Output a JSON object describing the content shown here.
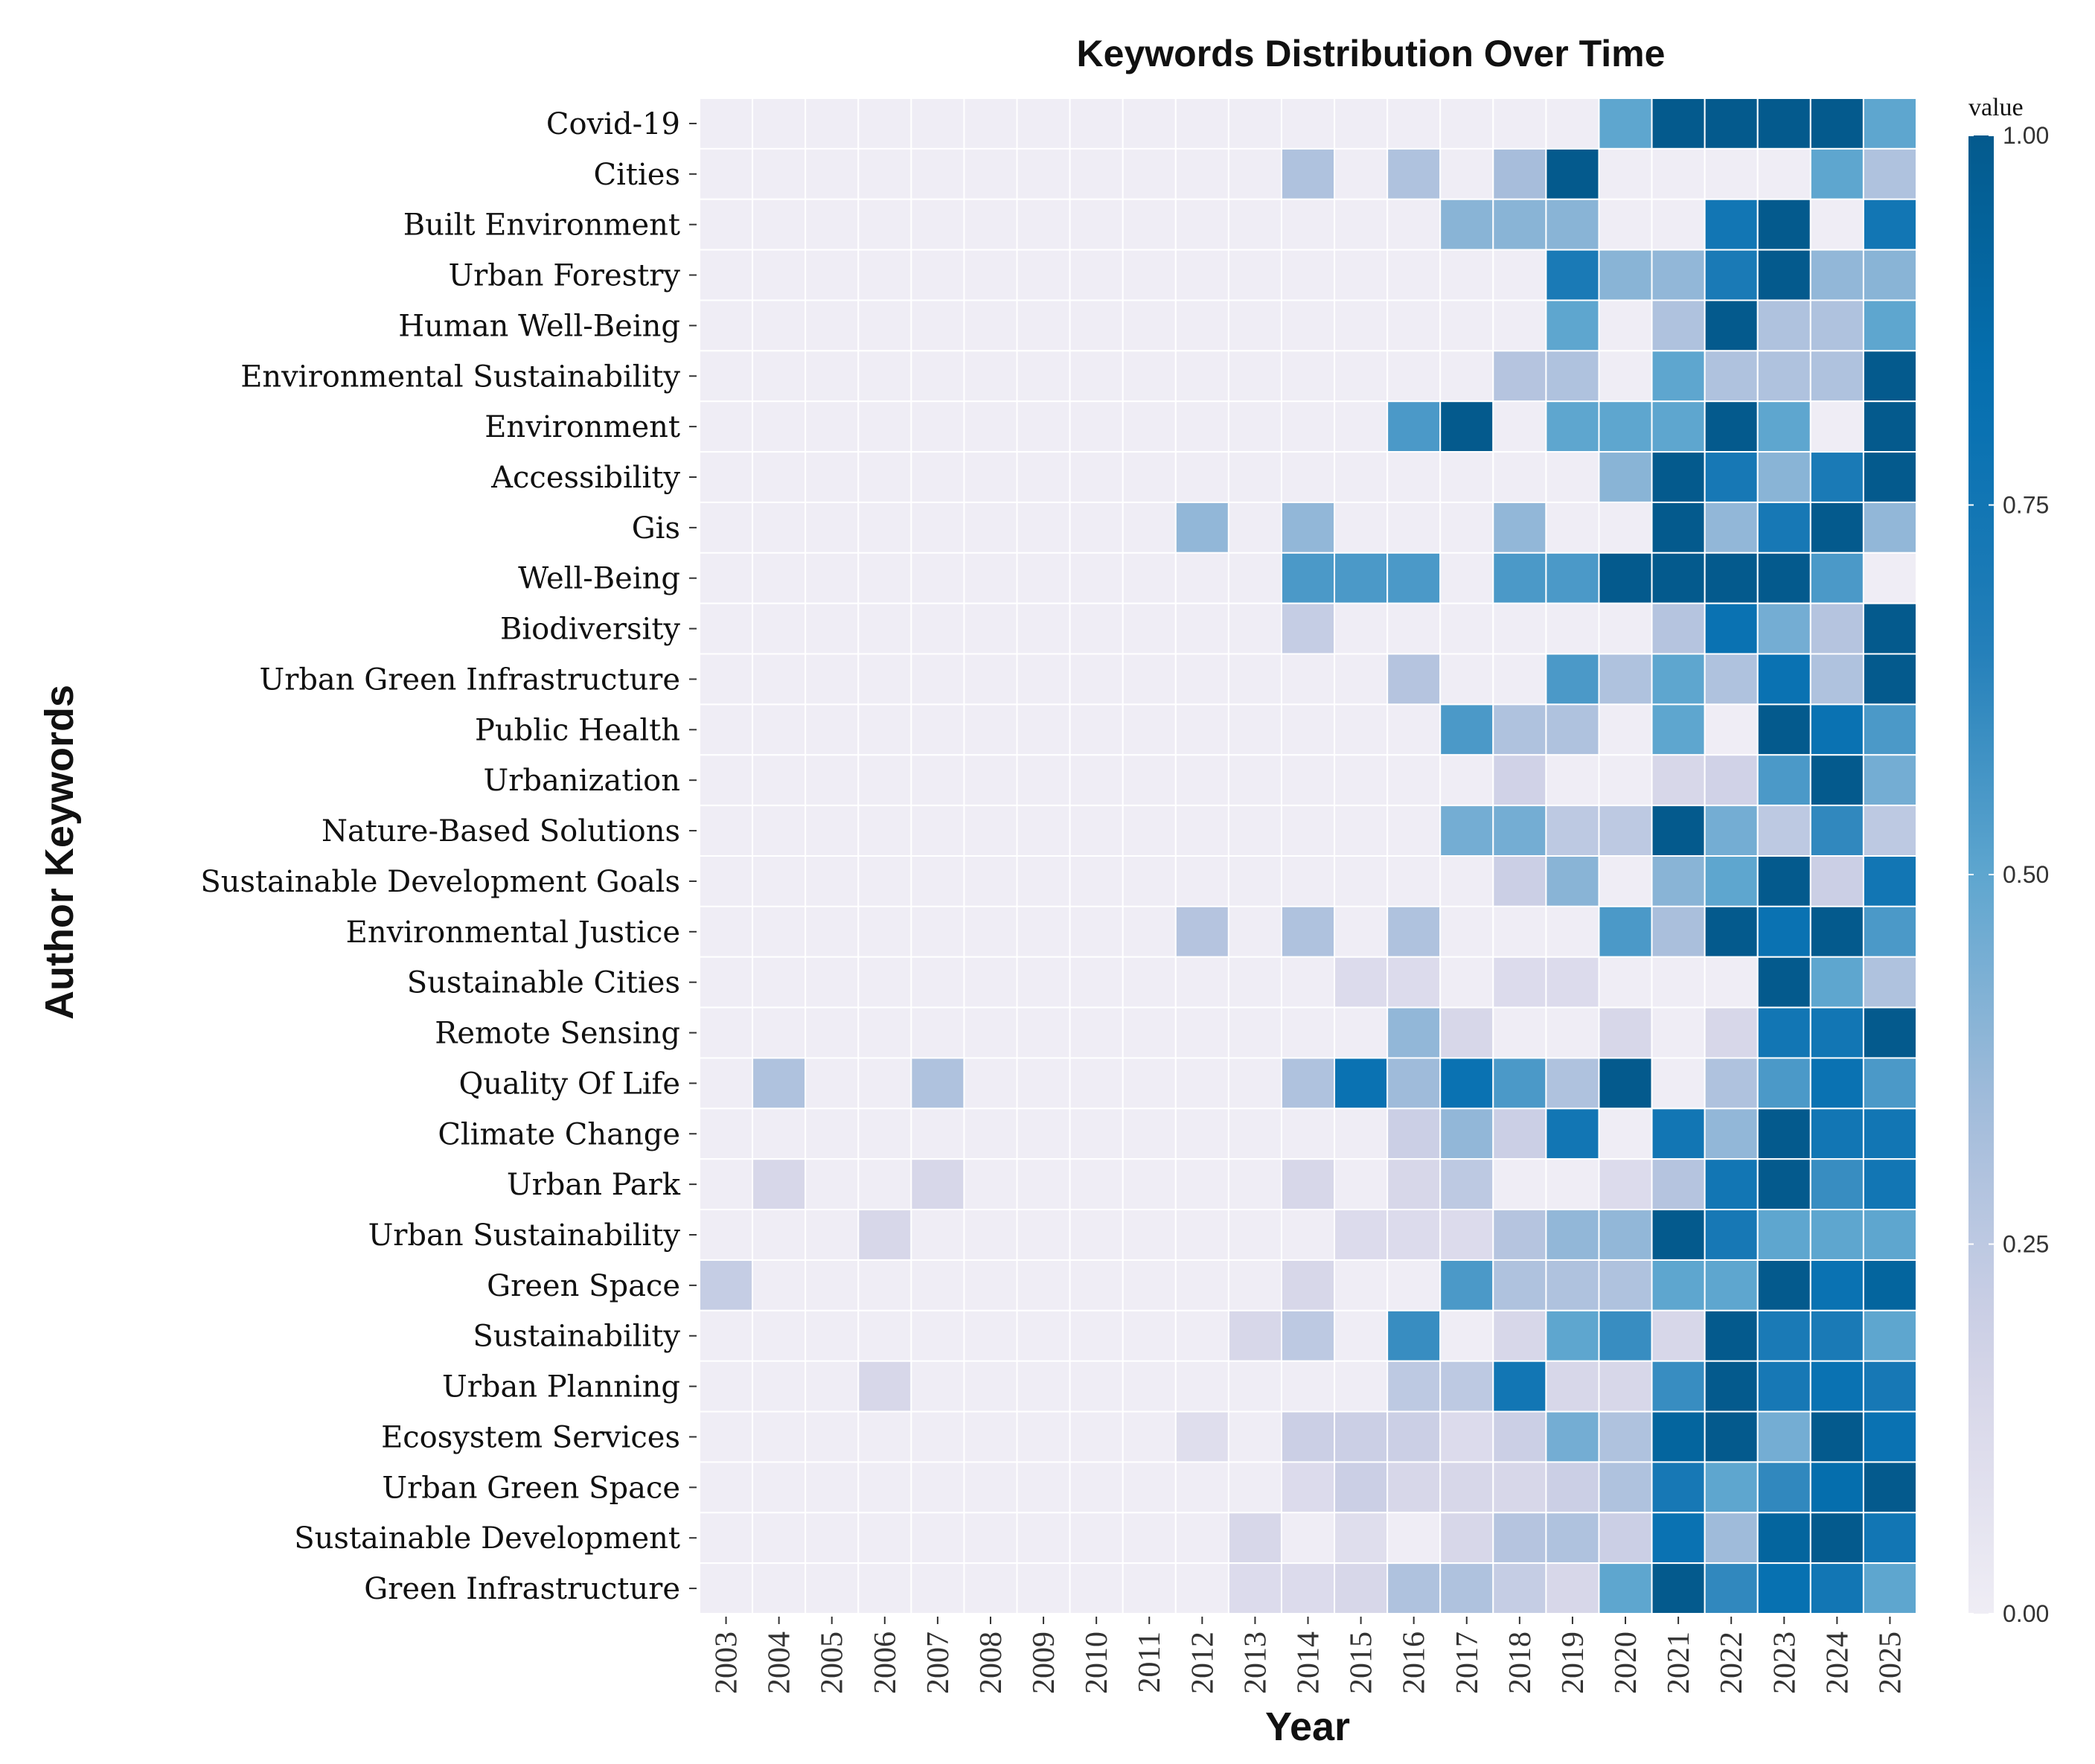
{
  "chart_data": {
    "type": "heatmap",
    "title": "Keywords Distribution Over Time",
    "xlabel": "Year",
    "ylabel": "Author Keywords",
    "legend_title": "value",
    "value_range": [
      0,
      1
    ],
    "legend_ticks": [
      "0.00",
      "0.25",
      "0.50",
      "0.75",
      "1.00"
    ],
    "legend_tick_values": [
      0,
      0.25,
      0.5,
      0.75,
      1.0
    ],
    "color_stops": [
      "#efedf5",
      "#d4d4e8",
      "#a6bddb",
      "#5ea6cf",
      "#1f7cb8",
      "#0570b0",
      "#045a8d"
    ],
    "years": [
      "2003",
      "2004",
      "2005",
      "2006",
      "2007",
      "2008",
      "2009",
      "2010",
      "2011",
      "2012",
      "2013",
      "2014",
      "2015",
      "2016",
      "2017",
      "2018",
      "2019",
      "2020",
      "2021",
      "2022",
      "2023",
      "2024",
      "2025"
    ],
    "keywords": [
      "Covid-19",
      "Cities",
      "Built Environment",
      "Urban Forestry",
      "Human Well-Being",
      "Environmental Sustainability",
      "Environment",
      "Accessibility",
      "Gis",
      "Well-Being",
      "Biodiversity",
      "Urban Green Infrastructure",
      "Public Health",
      "Urbanization",
      "Nature-Based Solutions",
      "Sustainable Development Goals",
      "Environmental Justice",
      "Sustainable Cities",
      "Remote Sensing",
      "Quality Of Life",
      "Climate Change",
      "Urban Park",
      "Urban Sustainability",
      "Green Space",
      "Sustainability",
      "Urban Planning",
      "Ecosystem Services",
      "Urban Green Space",
      "Sustainable Development",
      "Green Infrastructure"
    ],
    "values": [
      [
        0,
        0,
        0,
        0,
        0,
        0,
        0,
        0,
        0,
        0,
        0,
        0,
        0,
        0,
        0,
        0,
        0,
        0.5,
        1,
        1,
        1,
        1,
        0.5
      ],
      [
        0,
        0,
        0,
        0,
        0,
        0,
        0,
        0,
        0,
        0,
        0,
        0.3,
        0,
        0.3,
        0,
        0.33,
        1,
        0,
        0,
        0,
        0,
        0.5,
        0.3
      ],
      [
        0,
        0,
        0,
        0,
        0,
        0,
        0,
        0,
        0,
        0,
        0,
        0,
        0,
        0,
        0.4,
        0.4,
        0.4,
        0,
        0,
        0.75,
        1,
        0,
        0.75
      ],
      [
        0,
        0,
        0,
        0,
        0,
        0,
        0,
        0,
        0,
        0,
        0,
        0,
        0,
        0,
        0,
        0,
        0.7,
        0.4,
        0.38,
        0.7,
        1,
        0.38,
        0.4
      ],
      [
        0,
        0,
        0,
        0,
        0,
        0,
        0,
        0,
        0,
        0,
        0,
        0,
        0,
        0,
        0,
        0,
        0.5,
        0,
        0.3,
        1,
        0.3,
        0.3,
        0.5
      ],
      [
        0,
        0,
        0,
        0,
        0,
        0,
        0,
        0,
        0,
        0,
        0,
        0,
        0,
        0,
        0,
        0.28,
        0.3,
        0,
        0.5,
        0.3,
        0.3,
        0.3,
        1
      ],
      [
        0,
        0,
        0,
        0,
        0,
        0,
        0,
        0,
        0,
        0,
        0,
        0,
        0,
        0.55,
        1,
        0,
        0.5,
        0.5,
        0.5,
        1,
        0.5,
        0,
        1
      ],
      [
        0,
        0,
        0,
        0,
        0,
        0,
        0,
        0,
        0,
        0,
        0,
        0,
        0,
        0,
        0,
        0,
        0,
        0.4,
        1,
        0.72,
        0.4,
        0.7,
        1
      ],
      [
        0,
        0,
        0,
        0,
        0,
        0,
        0,
        0,
        0,
        0.38,
        0,
        0.38,
        0,
        0,
        0,
        0.38,
        0,
        0,
        1,
        0.38,
        0.72,
        1,
        0.38
      ],
      [
        0,
        0,
        0,
        0,
        0,
        0,
        0,
        0,
        0,
        0,
        0,
        0.55,
        0.55,
        0.55,
        0,
        0.55,
        0.55,
        1,
        1,
        1,
        1,
        0.55,
        0
      ],
      [
        0,
        0,
        0,
        0,
        0,
        0,
        0,
        0,
        0,
        0,
        0,
        0.22,
        0,
        0,
        0,
        0,
        0,
        0,
        0.28,
        0.8,
        0.45,
        0.28,
        1
      ],
      [
        0,
        0,
        0,
        0,
        0,
        0,
        0,
        0,
        0,
        0,
        0,
        0,
        0,
        0.28,
        0,
        0,
        0.55,
        0.3,
        0.5,
        0.3,
        0.8,
        0.3,
        1
      ],
      [
        0,
        0,
        0,
        0,
        0,
        0,
        0,
        0,
        0,
        0,
        0,
        0,
        0,
        0,
        0.55,
        0.3,
        0.3,
        0,
        0.5,
        0,
        1,
        0.8,
        0.55
      ],
      [
        0,
        0,
        0,
        0,
        0,
        0,
        0,
        0,
        0,
        0,
        0,
        0,
        0,
        0,
        0,
        0.18,
        0,
        0,
        0.15,
        0.18,
        0.55,
        1,
        0.45
      ],
      [
        0,
        0,
        0,
        0,
        0,
        0,
        0,
        0,
        0,
        0,
        0,
        0,
        0,
        0,
        0.45,
        0.45,
        0.25,
        0.25,
        1,
        0.45,
        0.25,
        0.62,
        0.25
      ],
      [
        0,
        0,
        0,
        0,
        0,
        0,
        0,
        0,
        0,
        0,
        0,
        0,
        0,
        0,
        0,
        0.2,
        0.4,
        0,
        0.4,
        0.5,
        1,
        0.2,
        0.75
      ],
      [
        0,
        0,
        0,
        0,
        0,
        0,
        0,
        0,
        0,
        0.28,
        0,
        0.3,
        0,
        0.3,
        0,
        0,
        0,
        0.55,
        0.32,
        1,
        0.8,
        1,
        0.55
      ],
      [
        0,
        0,
        0,
        0,
        0,
        0,
        0,
        0,
        0,
        0,
        0,
        0,
        0.12,
        0.12,
        0,
        0.12,
        0.12,
        0,
        0,
        0,
        1,
        0.5,
        0.3
      ],
      [
        0,
        0,
        0,
        0,
        0,
        0,
        0,
        0,
        0,
        0,
        0,
        0,
        0,
        0.38,
        0.15,
        0,
        0,
        0.15,
        0,
        0.15,
        0.75,
        0.75,
        1
      ],
      [
        0,
        0.3,
        0,
        0,
        0.3,
        0,
        0,
        0,
        0,
        0,
        0,
        0.3,
        0.8,
        0.35,
        0.8,
        0.55,
        0.3,
        1,
        0,
        0.3,
        0.55,
        0.8,
        0.55
      ],
      [
        0,
        0,
        0,
        0,
        0,
        0,
        0,
        0,
        0,
        0,
        0,
        0,
        0,
        0.2,
        0.38,
        0.2,
        0.75,
        0,
        0.75,
        0.38,
        1,
        0.75,
        0.75
      ],
      [
        0,
        0.15,
        0,
        0,
        0.15,
        0,
        0,
        0,
        0,
        0,
        0,
        0.15,
        0,
        0.15,
        0.25,
        0,
        0,
        0.12,
        0.28,
        0.75,
        1,
        0.6,
        0.75
      ],
      [
        0,
        0,
        0,
        0.15,
        0,
        0,
        0,
        0,
        0,
        0,
        0,
        0,
        0.12,
        0.12,
        0.12,
        0.28,
        0.38,
        0.38,
        1,
        0.72,
        0.5,
        0.5,
        0.5
      ],
      [
        0.22,
        0,
        0,
        0,
        0,
        0,
        0,
        0,
        0,
        0,
        0,
        0.15,
        0,
        0,
        0.55,
        0.3,
        0.3,
        0.3,
        0.5,
        0.5,
        1,
        0.8,
        0.92
      ],
      [
        0,
        0,
        0,
        0,
        0,
        0,
        0,
        0,
        0,
        0,
        0.15,
        0.25,
        0,
        0.6,
        0,
        0.15,
        0.5,
        0.6,
        0.15,
        1,
        0.7,
        0.7,
        0.5
      ],
      [
        0,
        0,
        0,
        0.15,
        0,
        0,
        0,
        0,
        0,
        0,
        0,
        0,
        0,
        0.25,
        0.25,
        0.75,
        0.15,
        0.15,
        0.6,
        1,
        0.72,
        0.8,
        0.72
      ],
      [
        0,
        0,
        0,
        0,
        0,
        0,
        0,
        0,
        0,
        0.1,
        0,
        0.2,
        0.2,
        0.2,
        0.12,
        0.2,
        0.45,
        0.3,
        0.92,
        1,
        0.45,
        1,
        0.8
      ],
      [
        0,
        0,
        0,
        0,
        0,
        0,
        0,
        0,
        0,
        0,
        0,
        0.12,
        0.2,
        0.15,
        0.15,
        0.15,
        0.2,
        0.3,
        0.72,
        0.5,
        0.62,
        0.85,
        1
      ],
      [
        0,
        0,
        0,
        0,
        0,
        0,
        0,
        0,
        0,
        0,
        0.15,
        0,
        0.1,
        0,
        0.15,
        0.28,
        0.3,
        0.2,
        0.8,
        0.35,
        0.92,
        1,
        0.75
      ],
      [
        0,
        0,
        0,
        0,
        0,
        0,
        0,
        0,
        0,
        0,
        0.12,
        0.12,
        0.15,
        0.3,
        0.3,
        0.22,
        0.15,
        0.5,
        1,
        0.62,
        0.82,
        0.75,
        0.5
      ]
    ]
  }
}
